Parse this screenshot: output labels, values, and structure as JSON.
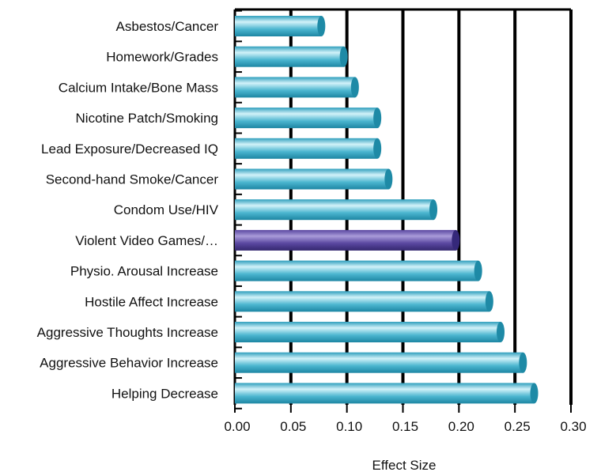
{
  "chart_data": {
    "type": "bar",
    "orientation": "horizontal",
    "categories": [
      "Asbestos/Cancer",
      "Homework/Grades",
      "Calcium Intake/Bone Mass",
      "Nicotine Patch/Smoking",
      "Lead Exposure/Decreased IQ",
      "Second-hand Smoke/Cancer",
      "Condom Use/HIV",
      "Violent Video Games/…",
      "Physio. Arousal Increase",
      "Hostile Affect Increase",
      "Aggressive Thoughts Increase",
      "Aggressive Behavior Increase",
      "Helping Decrease"
    ],
    "values": [
      0.08,
      0.1,
      0.11,
      0.13,
      0.13,
      0.14,
      0.18,
      0.2,
      0.22,
      0.23,
      0.24,
      0.26,
      0.27
    ],
    "highlight_index": 7,
    "xlabel": "Effect Size",
    "ylabel": "",
    "title": "",
    "xlim": [
      0,
      0.3
    ],
    "xticks": [
      "0.00",
      "0.05",
      "0.10",
      "0.15",
      "0.20",
      "0.25",
      "0.30"
    ],
    "grid": "vertical",
    "colors": {
      "bar": "#35aac6",
      "bar_light": "#c7eef7",
      "bar_cap": "#1e8aa6",
      "highlight": "#4b3a8c",
      "highlight_light": "#9d8fd0",
      "highlight_cap": "#35287a",
      "grid": "#000000"
    }
  }
}
